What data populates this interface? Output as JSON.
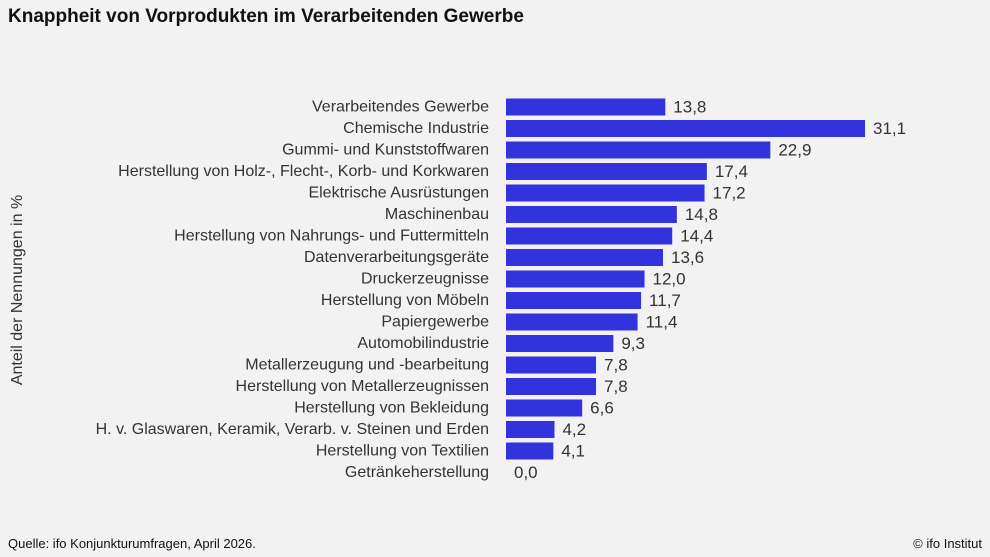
{
  "title": "Knappheit von Vorprodukten im Verarbeitenden Gewerbe",
  "source": "Quelle: ifo Konjunkturumfragen,  April 2026.",
  "copyright": "© ifo Institut",
  "colors": {
    "bar": "#3333dd",
    "background": "#f2f2f2"
  },
  "chart_data": {
    "type": "bar",
    "orientation": "horizontal",
    "title": "Knappheit von Vorprodukten im Verarbeitenden Gewerbe",
    "ylabel": "Anteil der Nennungen in %",
    "grid": false,
    "categories": [
      "Verarbeitendes Gewerbe",
      "Chemische Industrie",
      "Gummi- und Kunststoffwaren",
      "Herstellung von Holz-, Flecht-, Korb- und Korkwaren",
      "Elektrische Ausrüstungen",
      "Maschinenbau",
      "Herstellung von Nahrungs- und Futtermitteln",
      "Datenverarbeitungsgeräte",
      "Druckerzeugnisse",
      "Herstellung von Möbeln",
      "Papiergewerbe",
      "Automobilindustrie",
      "Metallerzeugung und -bearbeitung",
      "Herstellung von Metallerzeugnissen",
      "Herstellung von Bekleidung",
      "H. v. Glaswaren, Keramik, Verarb. v. Steinen und Erden",
      "Herstellung von Textilien",
      "Getränkeherstellung"
    ],
    "values": [
      13.8,
      31.1,
      22.9,
      17.4,
      17.2,
      14.8,
      14.4,
      13.6,
      12.0,
      11.7,
      11.4,
      9.3,
      7.8,
      7.8,
      6.6,
      4.2,
      4.1,
      0.0
    ],
    "value_labels": [
      "13,8",
      "31,1",
      "22,9",
      "17,4",
      "17,2",
      "14,8",
      "14,4",
      "13,6",
      "12,0",
      "11,7",
      "11,4",
      "9,3",
      "7,8",
      "7,8",
      "6,6",
      "4,2",
      "4,1",
      "0,0"
    ],
    "xlim": [
      0,
      31.1
    ]
  }
}
